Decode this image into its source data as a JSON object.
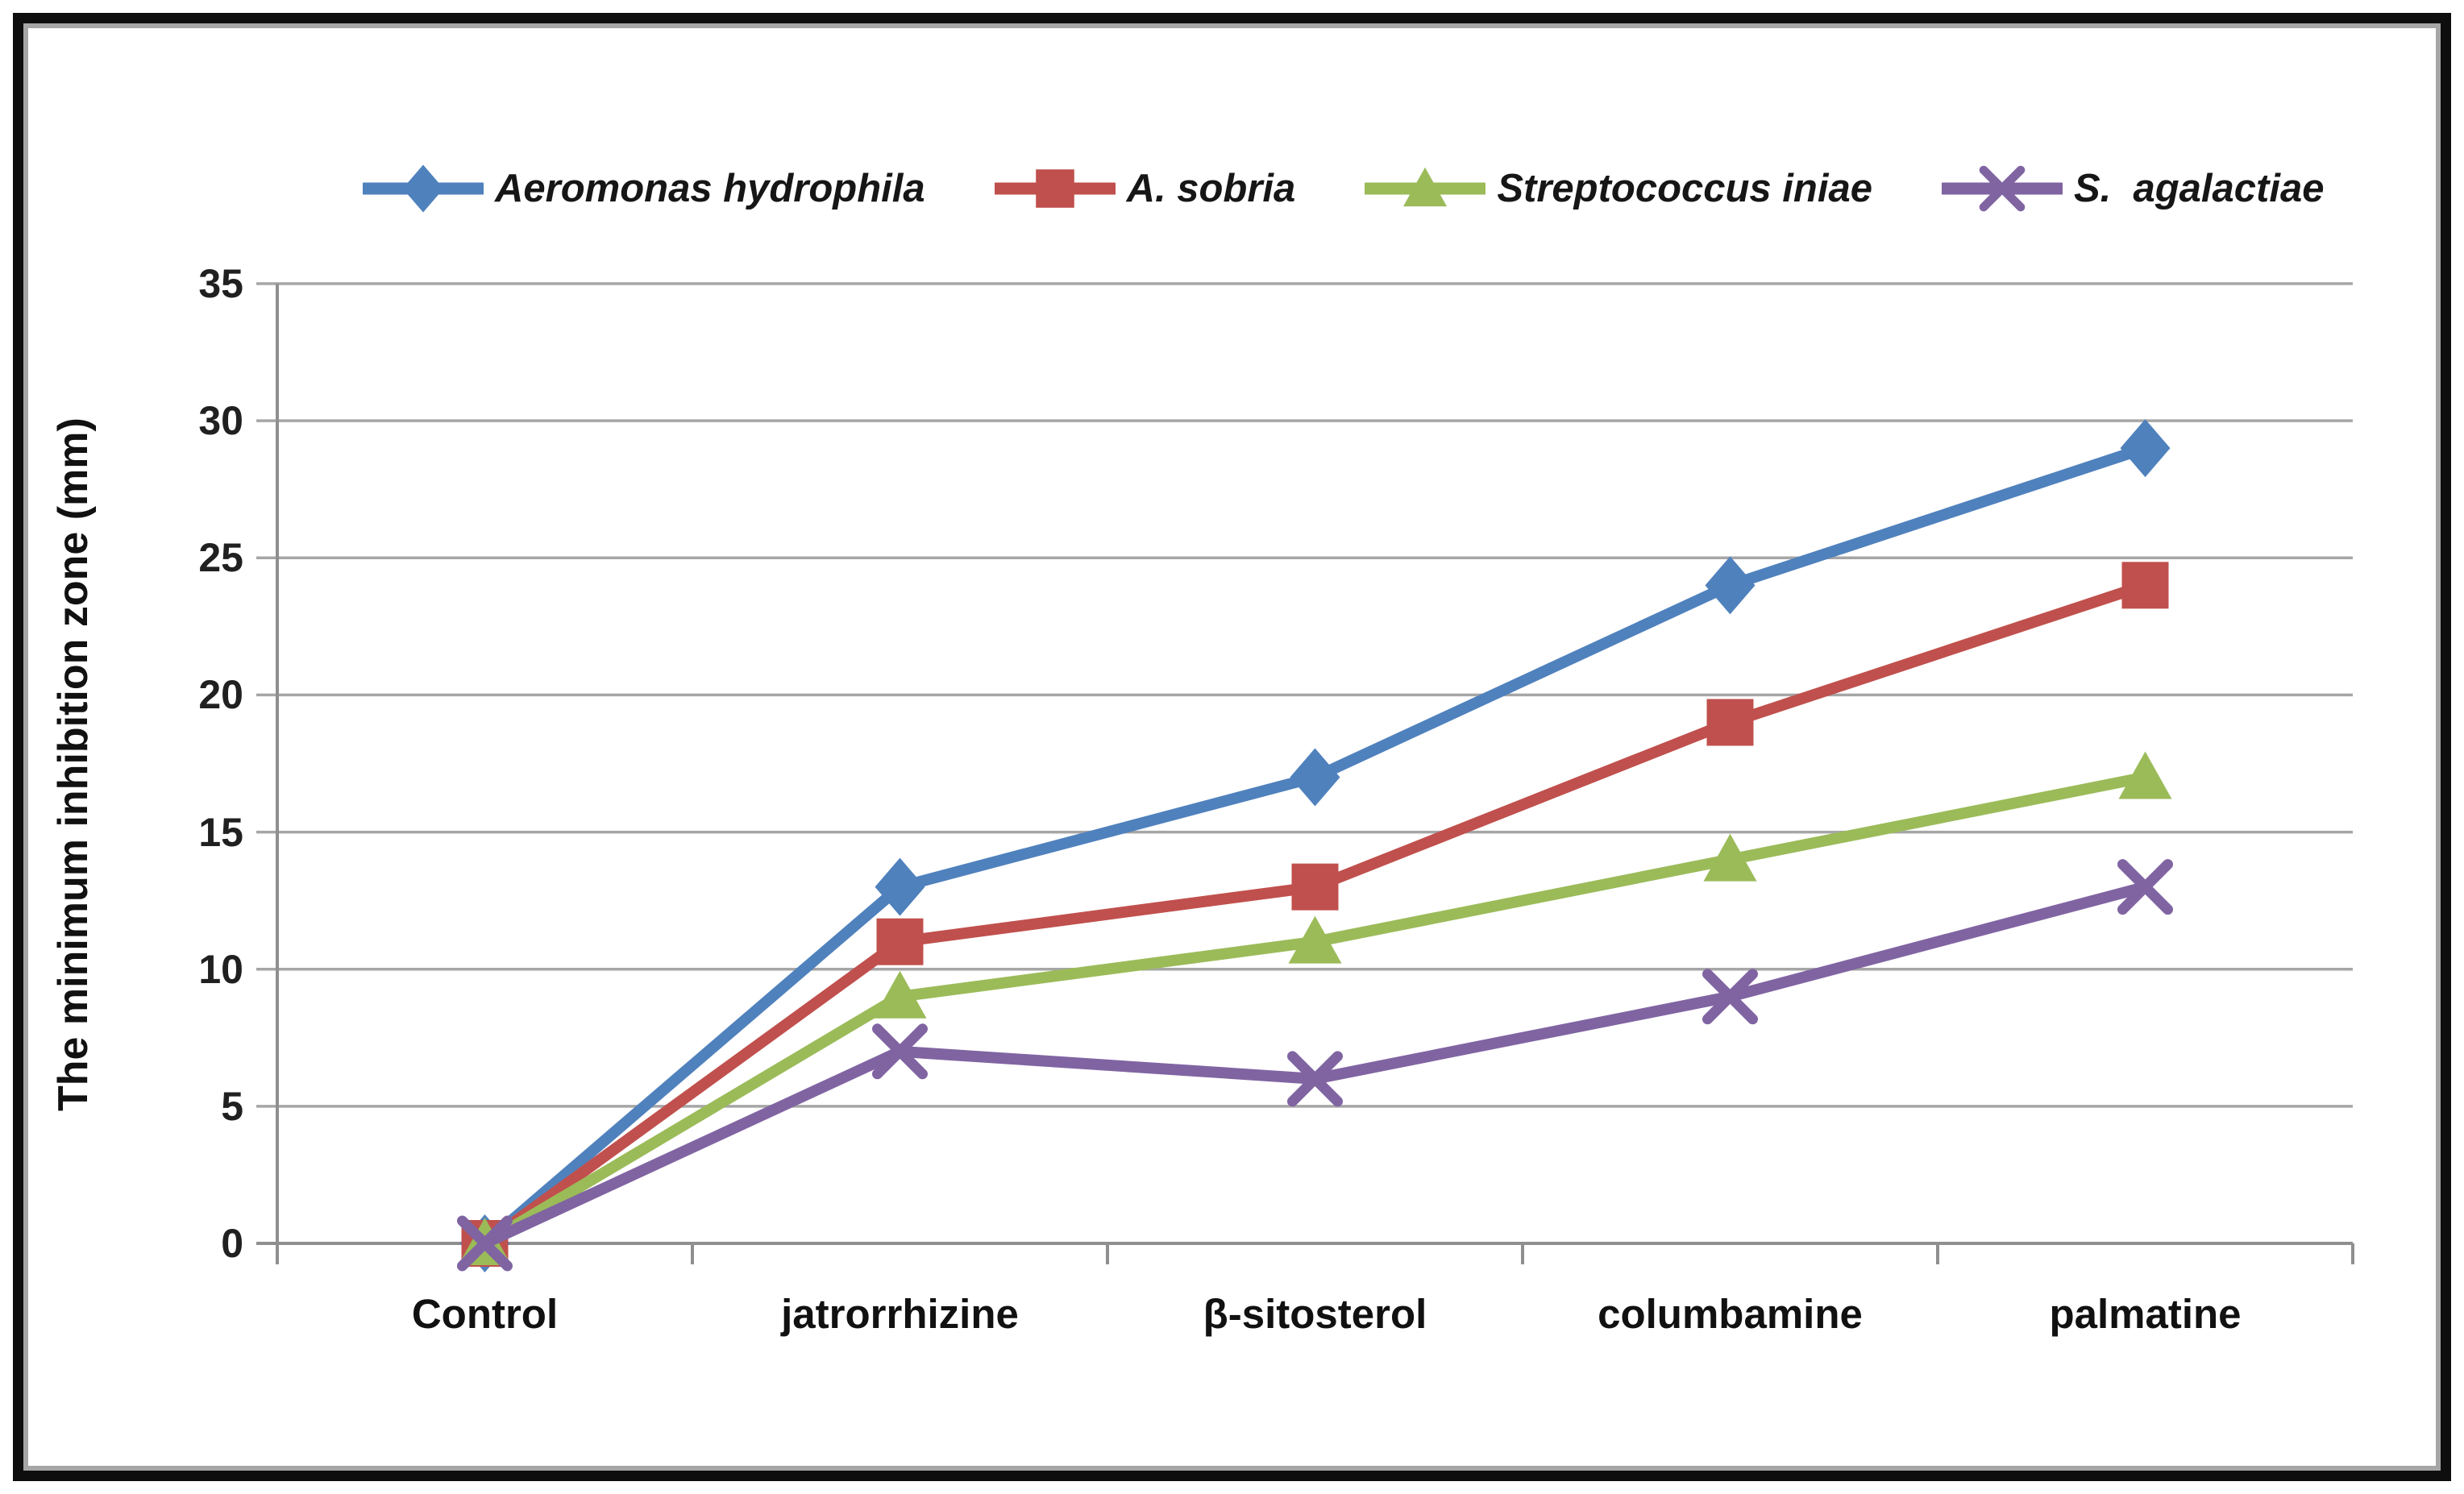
{
  "chart_data": {
    "type": "line",
    "title": "",
    "xlabel": "",
    "ylabel": "The minimum inhibition zone (mm)",
    "categories": [
      "Control",
      "jatrorrhizine",
      "β-sitosterol",
      "columbamine",
      "palmatine"
    ],
    "series": [
      {
        "name": "Aeromonas hydrophila",
        "marker": "diamond",
        "color": "#4F81BD",
        "values": [
          0,
          13,
          17,
          24,
          29
        ]
      },
      {
        "name": "A. sobria",
        "marker": "square",
        "color": "#C0504D",
        "values": [
          0,
          11,
          13,
          19,
          24
        ]
      },
      {
        "name": "Streptococcus iniae",
        "marker": "triangle",
        "color": "#9BBB59",
        "values": [
          0,
          9,
          11,
          14,
          17
        ]
      },
      {
        "name": "S.  agalactiae",
        "marker": "x",
        "color": "#8064A2",
        "values": [
          0,
          7,
          6,
          9,
          13
        ]
      }
    ],
    "ylim": [
      0,
      35
    ],
    "yticks": [
      0,
      5,
      10,
      15,
      20,
      25,
      30,
      35
    ],
    "grid": true,
    "legend_position": "top"
  },
  "styles": {
    "grid_color": "#a6a6a6",
    "axis_color": "#8f8f8f",
    "text_color": "#161616",
    "frame_outer_color": "#0e0e0e",
    "frame_inner_color": "#a6a6a6",
    "background": "#ffffff"
  }
}
